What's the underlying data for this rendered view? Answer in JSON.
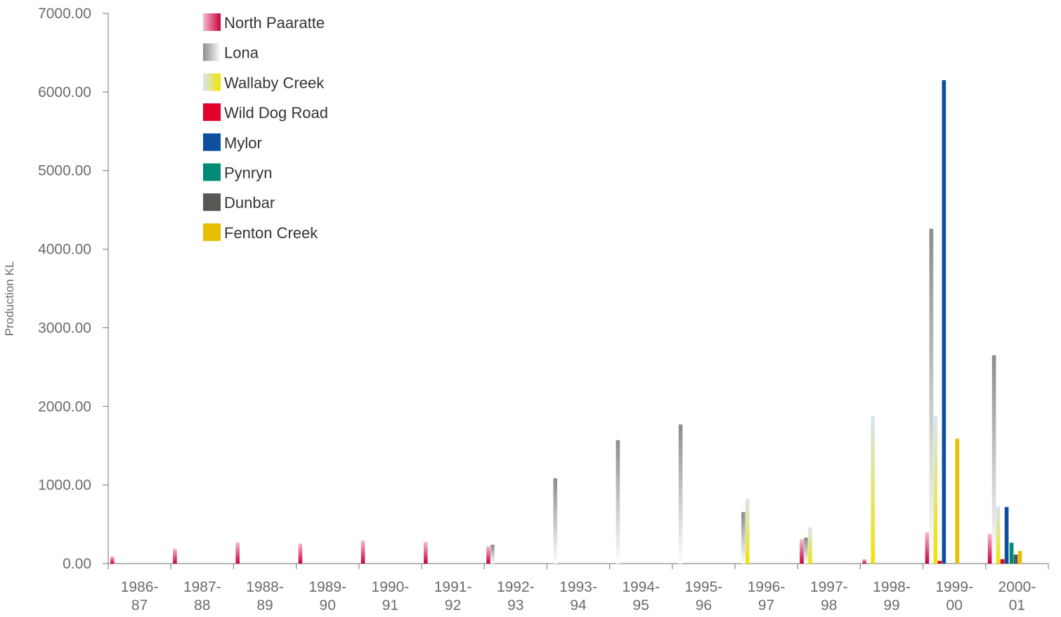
{
  "chart_data": {
    "type": "bar",
    "title": "",
    "xlabel": "",
    "ylabel": "Production KL",
    "ylim": [
      0,
      7000
    ],
    "yticks": [
      "0.00",
      "1000.00",
      "2000.00",
      "3000.00",
      "4000.00",
      "5000.00",
      "6000.00",
      "7000.00"
    ],
    "ytick_values": [
      0,
      1000,
      2000,
      3000,
      4000,
      5000,
      6000,
      7000
    ],
    "categories": [
      [
        "1986-",
        "87"
      ],
      [
        "1987-",
        "88"
      ],
      [
        "1988-",
        "89"
      ],
      [
        "1989-",
        "90"
      ],
      [
        "1990-",
        "91"
      ],
      [
        "1991-",
        "92"
      ],
      [
        "1992-",
        "93"
      ],
      [
        "1993-",
        "94"
      ],
      [
        "1994-",
        "95"
      ],
      [
        "1995-",
        "96"
      ],
      [
        "1996-",
        "97"
      ],
      [
        "1997-",
        "98"
      ],
      [
        "1998-",
        "99"
      ],
      [
        "1999-",
        "00"
      ],
      [
        "2000-",
        "01"
      ]
    ],
    "grid": false,
    "legend_position": "top-left",
    "series": [
      {
        "name": "North Paaratte",
        "style": "gradient",
        "colors": [
          "#c8003c",
          "#f7bccb"
        ],
        "values": [
          90,
          190,
          270,
          255,
          295,
          275,
          220,
          0,
          0,
          0,
          0,
          310,
          55,
          400,
          380
        ]
      },
      {
        "name": "Lona",
        "style": "gradient",
        "colors": [
          "#ffffff",
          "#8c8c8c"
        ],
        "values": [
          0,
          0,
          0,
          0,
          0,
          0,
          240,
          1085,
          1570,
          1770,
          655,
          330,
          0,
          4260,
          2650
        ]
      },
      {
        "name": "Wallaby  Creek",
        "style": "gradient",
        "colors": [
          "#f1e400",
          "#d6e6f2"
        ],
        "values": [
          0,
          0,
          0,
          0,
          0,
          0,
          0,
          0,
          0,
          0,
          820,
          460,
          1880,
          1880,
          730
        ]
      },
      {
        "name": "Wild Dog Road",
        "style": "solid",
        "colors": [
          "#e3002b"
        ],
        "values": [
          0,
          0,
          0,
          0,
          0,
          0,
          0,
          0,
          0,
          0,
          0,
          0,
          0,
          35,
          55
        ]
      },
      {
        "name": "Mylor",
        "style": "solid",
        "colors": [
          "#0d4f9c"
        ],
        "values": [
          0,
          0,
          0,
          0,
          0,
          0,
          0,
          0,
          0,
          0,
          0,
          0,
          0,
          6150,
          720
        ]
      },
      {
        "name": "Pynryn",
        "style": "solid",
        "colors": [
          "#008b74"
        ],
        "values": [
          0,
          0,
          0,
          0,
          0,
          0,
          0,
          0,
          0,
          0,
          0,
          0,
          0,
          0,
          265
        ]
      },
      {
        "name": "Dunbar",
        "style": "solid",
        "colors": [
          "#555853"
        ],
        "values": [
          0,
          0,
          0,
          0,
          0,
          0,
          0,
          0,
          0,
          0,
          0,
          0,
          0,
          0,
          115
        ]
      },
      {
        "name": "Fenton Creek",
        "style": "solid",
        "colors": [
          "#e6c000"
        ],
        "values": [
          0,
          0,
          0,
          0,
          0,
          0,
          0,
          0,
          0,
          0,
          0,
          0,
          0,
          1590,
          160
        ]
      }
    ]
  }
}
